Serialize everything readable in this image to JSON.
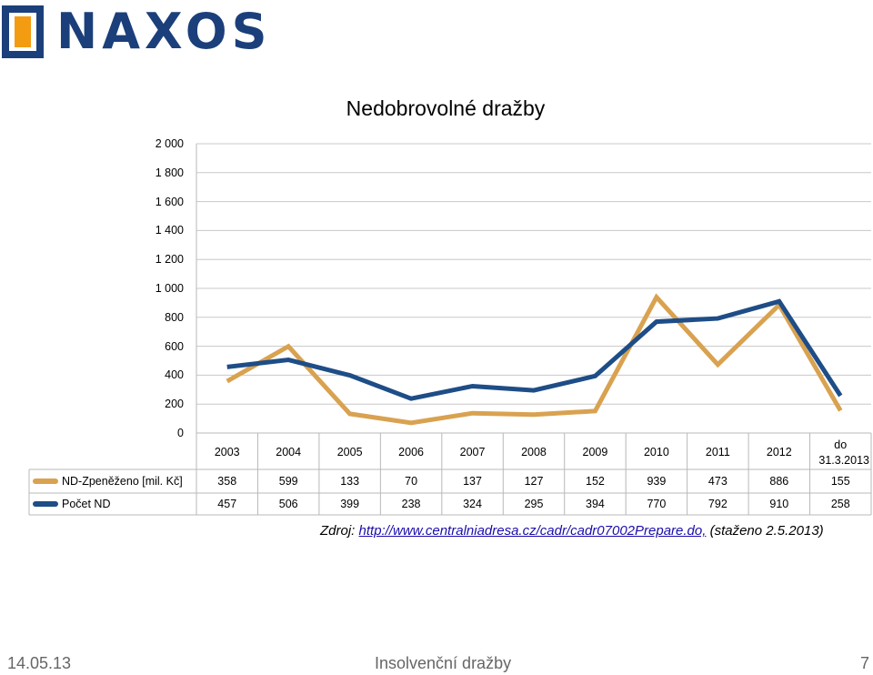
{
  "logo": {
    "text": "NAXOS",
    "brand_color": "#1b3f7a",
    "accent_color": "#f39c12"
  },
  "chart_data": {
    "type": "line",
    "title": "Nedobrovolné dražby",
    "categories": [
      "2003",
      "2004",
      "2005",
      "2006",
      "2007",
      "2008",
      "2009",
      "2010",
      "2011",
      "2012",
      "do 31.3.2013"
    ],
    "y_ticks": [
      "2 000",
      "1 800",
      "1 600",
      "1 400",
      "1 200",
      "1 000",
      "800",
      "600",
      "400",
      "200",
      "0"
    ],
    "ylim": [
      0,
      2000
    ],
    "grid": true,
    "legend": "table-below",
    "series": [
      {
        "name": "ND-Zpeněženo [mil. Kč]",
        "color": "#d9a250",
        "values": [
          358,
          599,
          133,
          70,
          137,
          127,
          152,
          939,
          473,
          886,
          155
        ],
        "value_labels": [
          "358",
          "599",
          "133",
          "70",
          "137",
          "127",
          "152",
          "939",
          "473",
          "886",
          "155"
        ]
      },
      {
        "name": "Počet ND",
        "color": "#1e4d87",
        "values": [
          457,
          506,
          399,
          238,
          324,
          295,
          394,
          770,
          792,
          910,
          258
        ],
        "value_labels": [
          "457",
          "506",
          "399",
          "238",
          "324",
          "295",
          "394",
          "770",
          "792",
          "910",
          "258"
        ]
      }
    ]
  },
  "source": {
    "prefix": "Zdroj: ",
    "link": "http://www.centralniadresa.cz/cadr/cadr07002Prepare.do,",
    "suffix": " (staženo 2.5.2013)"
  },
  "footer": {
    "date": "14.05.13",
    "title": "Insolvenční dražby",
    "page": "7"
  }
}
